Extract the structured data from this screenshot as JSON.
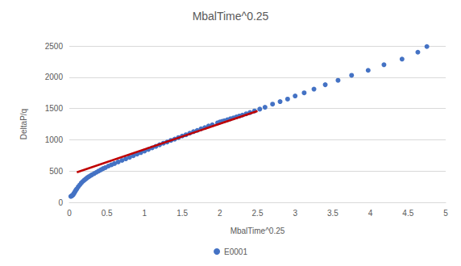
{
  "chart_data": {
    "type": "scatter",
    "title": "MbalTime^0.25",
    "x_label": "MbalTime^0.25",
    "y_label": "DeltaP/q",
    "xlim": [
      0,
      5
    ],
    "xticks": [
      0,
      0.5,
      1,
      1.5,
      2,
      2.5,
      3,
      3.5,
      4,
      4.5,
      5
    ],
    "ylim": [
      0,
      2500
    ],
    "yticks": [
      0,
      500,
      1000,
      1500,
      2000,
      2500
    ],
    "grid": true,
    "legend": "bottom",
    "series": [
      {
        "name": "E0001",
        "type": "scatter",
        "color": "#4472c4",
        "marker": "circle",
        "x": [
          0.02,
          0.03,
          0.04,
          0.05,
          0.06,
          0.07,
          0.08,
          0.09,
          0.1,
          0.12,
          0.14,
          0.16,
          0.18,
          0.2,
          0.22,
          0.24,
          0.26,
          0.28,
          0.3,
          0.33,
          0.36,
          0.39,
          0.42,
          0.45,
          0.48,
          0.52,
          0.56,
          0.6,
          0.65,
          0.7,
          0.75,
          0.8,
          0.85,
          0.9,
          0.95,
          1.0,
          1.05,
          1.1,
          1.15,
          1.2,
          1.25,
          1.3,
          1.35,
          1.4,
          1.45,
          1.5,
          1.55,
          1.6,
          1.65,
          1.7,
          1.75,
          1.8,
          1.85,
          1.9,
          1.97,
          2.0,
          2.03,
          2.06,
          2.1,
          2.14,
          2.18,
          2.22,
          2.26,
          2.3,
          2.35,
          2.4,
          2.46,
          2.53,
          2.6,
          2.7,
          2.8,
          2.9,
          3.0,
          3.12,
          3.25,
          3.4,
          3.57,
          3.75,
          3.97,
          4.18,
          4.42,
          4.63,
          4.75
        ],
        "values": [
          95,
          100,
          110,
          120,
          140,
          160,
          180,
          200,
          215,
          250,
          280,
          310,
          335,
          355,
          375,
          395,
          410,
          425,
          440,
          460,
          480,
          500,
          520,
          540,
          555,
          580,
          600,
          620,
          645,
          670,
          695,
          720,
          745,
          770,
          795,
          820,
          845,
          870,
          895,
          920,
          945,
          965,
          990,
          1010,
          1035,
          1060,
          1080,
          1105,
          1130,
          1150,
          1175,
          1195,
          1220,
          1240,
          1270,
          1285,
          1295,
          1305,
          1320,
          1335,
          1350,
          1365,
          1380,
          1395,
          1415,
          1435,
          1460,
          1490,
          1520,
          1570,
          1610,
          1650,
          1700,
          1750,
          1810,
          1880,
          1950,
          2030,
          2110,
          2200,
          2290,
          2400,
          2490
        ]
      },
      {
        "type": "line",
        "color": "#c00000",
        "line_style": "solid",
        "x": [
          0.1,
          2.5
        ],
        "values": [
          480,
          1460
        ]
      }
    ]
  }
}
